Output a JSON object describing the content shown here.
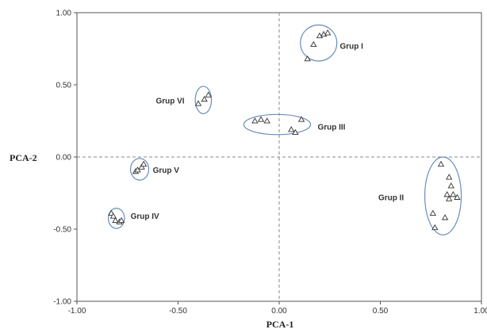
{
  "chart_data": {
    "type": "scatter",
    "xlabel": "PCA-1",
    "ylabel": "PCA-2",
    "xlim": [
      -1.0,
      1.0
    ],
    "ylim": [
      -1.0,
      1.0
    ],
    "xticks": [
      "-1.00",
      "-0.50",
      "0.00",
      "0.50",
      "1.00"
    ],
    "yticks": [
      "1.00",
      "0.50",
      "0.00",
      "-0.50",
      "-1.00"
    ],
    "xtick_values": [
      -1.0,
      -0.5,
      0.0,
      0.5,
      1.0
    ],
    "ytick_values": [
      1.0,
      0.5,
      0.0,
      -0.5,
      -1.0
    ],
    "grid": false,
    "reference_lines": [
      {
        "axis": "x",
        "value": 0
      },
      {
        "axis": "y",
        "value": 0
      }
    ],
    "marker": "open-triangle",
    "colors": {
      "ellipse": "#6b8cba",
      "marker": "#333333",
      "axis": "#555555"
    },
    "groups": [
      {
        "name": "Grup I",
        "points": [
          [
            0.14,
            0.68
          ],
          [
            0.17,
            0.78
          ],
          [
            0.2,
            0.84
          ],
          [
            0.22,
            0.85
          ],
          [
            0.24,
            0.86
          ]
        ],
        "ellipse": {
          "cx": 0.195,
          "cy": 0.79,
          "rx": 0.09,
          "ry": 0.125
        },
        "label": {
          "x": 0.3,
          "y": 0.77
        }
      },
      {
        "name": "Grup II",
        "points": [
          [
            0.8,
            -0.05
          ],
          [
            0.84,
            -0.14
          ],
          [
            0.85,
            -0.2
          ],
          [
            0.83,
            -0.26
          ],
          [
            0.86,
            -0.26
          ],
          [
            0.84,
            -0.29
          ],
          [
            0.88,
            -0.28
          ],
          [
            0.76,
            -0.39
          ],
          [
            0.82,
            -0.42
          ],
          [
            0.77,
            -0.49
          ]
        ],
        "ellipse": {
          "cx": 0.81,
          "cy": -0.27,
          "rx": 0.09,
          "ry": 0.27
        },
        "label": {
          "x": 0.49,
          "y": -0.28
        }
      },
      {
        "name": "Grup III",
        "points": [
          [
            -0.12,
            0.25
          ],
          [
            -0.09,
            0.26
          ],
          [
            -0.06,
            0.25
          ],
          [
            0.11,
            0.26
          ],
          [
            0.06,
            0.19
          ],
          [
            0.08,
            0.17
          ]
        ],
        "ellipse": {
          "cx": -0.01,
          "cy": 0.225,
          "rx": 0.165,
          "ry": 0.07
        },
        "label": {
          "x": 0.19,
          "y": 0.21
        }
      },
      {
        "name": "Grup IV",
        "points": [
          [
            -0.83,
            -0.39
          ],
          [
            -0.82,
            -0.41
          ],
          [
            -0.81,
            -0.44
          ],
          [
            -0.79,
            -0.45
          ],
          [
            -0.78,
            -0.44
          ]
        ],
        "ellipse": {
          "cx": -0.805,
          "cy": -0.425,
          "rx": 0.04,
          "ry": 0.07
        },
        "label": {
          "x": -0.735,
          "y": -0.41
        }
      },
      {
        "name": "Grup V",
        "points": [
          [
            -0.71,
            -0.1
          ],
          [
            -0.7,
            -0.09
          ],
          [
            -0.68,
            -0.07
          ],
          [
            -0.67,
            -0.05
          ]
        ],
        "ellipse": {
          "cx": -0.69,
          "cy": -0.085,
          "rx": 0.045,
          "ry": 0.075
        },
        "label": {
          "x": -0.625,
          "y": -0.09
        }
      },
      {
        "name": "Grup VI",
        "points": [
          [
            -0.4,
            0.37
          ],
          [
            -0.37,
            0.4
          ],
          [
            -0.35,
            0.43
          ]
        ],
        "ellipse": {
          "cx": -0.375,
          "cy": 0.395,
          "rx": 0.04,
          "ry": 0.095
        },
        "label": {
          "x": -0.61,
          "y": 0.39
        }
      }
    ]
  }
}
